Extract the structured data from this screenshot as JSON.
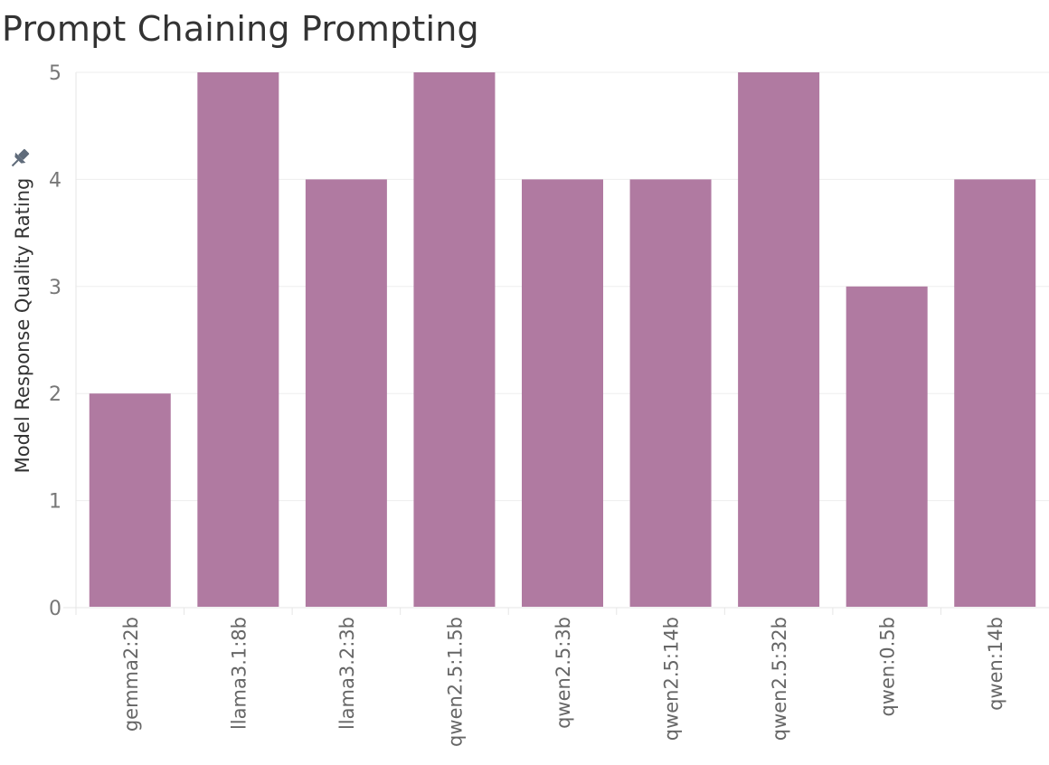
{
  "chart_data": {
    "type": "bar",
    "title": "Prompt Chaining Prompting",
    "xlabel": "",
    "ylabel": "Model Response Quality Rating",
    "categories": [
      "gemma2:2b",
      "llama3.1:8b",
      "llama3.2:3b",
      "qwen2.5:1.5b",
      "qwen2.5:3b",
      "qwen2.5:14b",
      "qwen2.5:32b",
      "qwen:0.5b",
      "qwen:14b"
    ],
    "values": [
      2,
      5,
      4,
      5,
      4,
      4,
      5,
      3,
      4
    ],
    "ylim": [
      0,
      5
    ],
    "yticks": [
      0,
      1,
      2,
      3,
      4,
      5
    ],
    "grid": true,
    "colors": {
      "bar": "#b07aa1"
    }
  },
  "icons": {
    "pin": "pin-icon"
  }
}
